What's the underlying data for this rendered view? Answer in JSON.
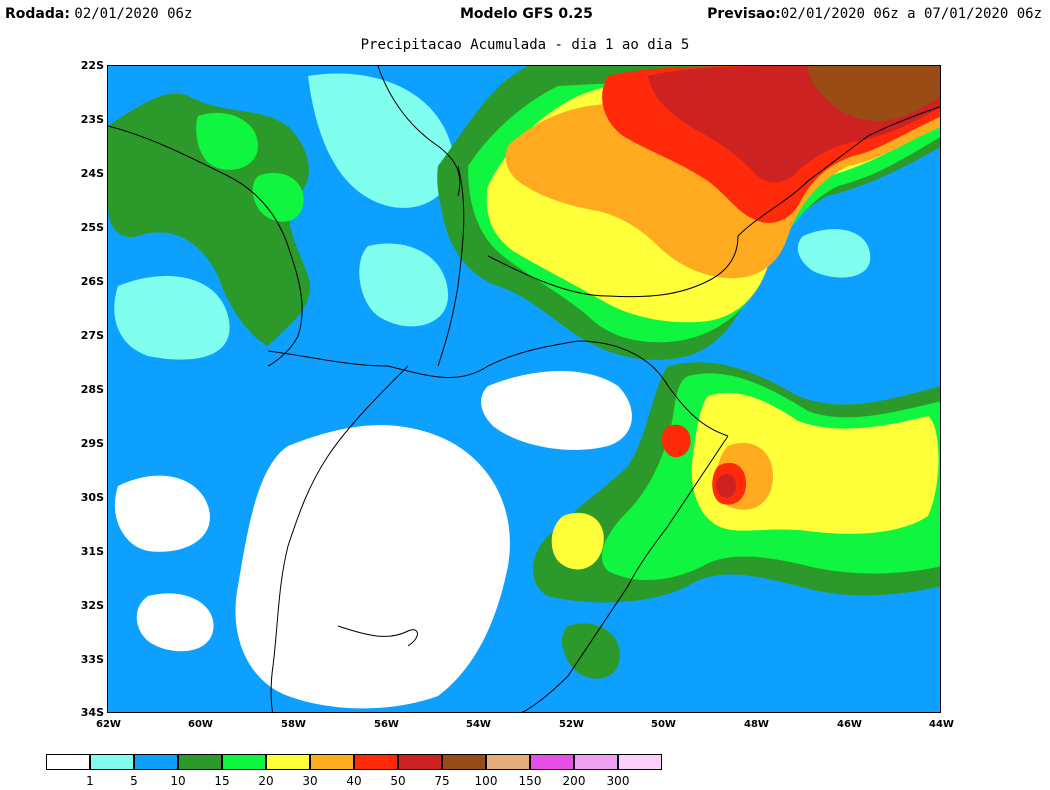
{
  "header": {
    "left_label": "Rodada:",
    "left_value": "02/01/2020 06z",
    "center_label": "Modelo GFS 0.25",
    "right_label": "Previsao:",
    "right_value": "02/01/2020 06z a 07/01/2020 06z"
  },
  "title": "Precipitacao Acumulada - dia 1 ao dia 5",
  "y_axis_labels": [
    "22S",
    "23S",
    "24S",
    "25S",
    "26S",
    "27S",
    "28S",
    "29S",
    "30S",
    "31S",
    "32S",
    "33S",
    "34S"
  ],
  "x_axis_labels": [
    "62W",
    "60W",
    "58W",
    "56W",
    "54W",
    "52W",
    "50W",
    "48W",
    "46W",
    "44W"
  ],
  "legend": {
    "colors": [
      "#ffffff",
      "#80ffee",
      "#0ea0ff",
      "#2b9a2b",
      "#10f540",
      "#ffff3a",
      "#ffaa1f",
      "#ff2a0a",
      "#cc2222",
      "#994c14",
      "#e6ae7a",
      "#e650e6",
      "#f0a0f0",
      "#fbd0fb"
    ],
    "labels": [
      "1",
      "5",
      "10",
      "15",
      "20",
      "30",
      "40",
      "50",
      "75",
      "100",
      "150",
      "200",
      "300"
    ]
  }
}
